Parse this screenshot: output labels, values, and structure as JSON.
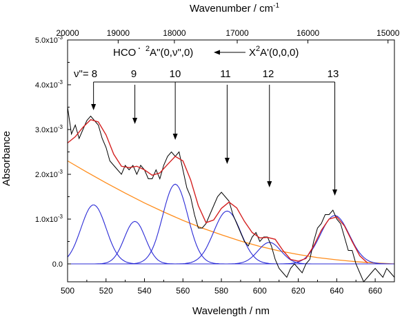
{
  "chart_data": {
    "type": "line",
    "xlabel": "Wavelength / nm",
    "x2label_main": "Wavenumber / cm",
    "x2label_exp": "-1",
    "ylabel": "Absorbance",
    "xlim": [
      500,
      670
    ],
    "ylim": [
      -0.0004,
      0.005
    ],
    "x_ticks": [
      500,
      520,
      540,
      560,
      580,
      600,
      620,
      640,
      660
    ],
    "x_tick_labels": [
      "500",
      "520",
      "540",
      "560",
      "580",
      "600",
      "620",
      "640",
      "660"
    ],
    "x2_ticks_cm": [
      20000,
      19000,
      18000,
      17000,
      16000,
      15000
    ],
    "x2_tick_labels": [
      "20000",
      "19000",
      "18000",
      "17000",
      "16000",
      "15000"
    ],
    "y_ticks": [
      0,
      0.001,
      0.002,
      0.003,
      0.004,
      0.005
    ],
    "y_tick_labels": [
      {
        "mant": "0.0",
        "exp": ""
      },
      {
        "mant": "1.0x10",
        "exp": "-3"
      },
      {
        "mant": "2.0x10",
        "exp": "-3"
      },
      {
        "mant": "3.0x10",
        "exp": "-3"
      },
      {
        "mant": "4.0x10",
        "exp": "-3"
      },
      {
        "mant": "5.0x10",
        "exp": "-3"
      }
    ],
    "annotation": {
      "upper_prefix": "HCO",
      "upper_dot": "·",
      "upper_sup": "2",
      "upper_state": "A\"(0,ν\",0)",
      "lower_state_X": "X",
      "lower_sup": "2",
      "lower_state": "A'(0,0,0)",
      "v_label": "ν\"= 8",
      "band_labels": [
        "9",
        "10",
        "11",
        "12",
        "13"
      ]
    },
    "band_positions_nm": [
      513.5,
      535,
      556,
      583,
      605,
      639
    ],
    "series": [
      {
        "role": "measured spectrum",
        "color": "#000000",
        "x": [
          500,
          502,
          504,
          506,
          508,
          510,
          512,
          514,
          516,
          518,
          520,
          522,
          524,
          526,
          528,
          530,
          532,
          534,
          536,
          538,
          540,
          542,
          544,
          546,
          548,
          550,
          552,
          554,
          556,
          558,
          560,
          562,
          564,
          566,
          568,
          570,
          572,
          574,
          576,
          578,
          580,
          582,
          584,
          586,
          588,
          590,
          592,
          594,
          596,
          598,
          600,
          602,
          604,
          606,
          608,
          610,
          612,
          614,
          616,
          618,
          620,
          622,
          624,
          626,
          628,
          630,
          632,
          634,
          636,
          638,
          640,
          642,
          644,
          646,
          648,
          650,
          652,
          654,
          656,
          658,
          660,
          662,
          664,
          666,
          668,
          670
        ],
        "y": [
          0.0035,
          0.0029,
          0.0031,
          0.0028,
          0.003,
          0.0032,
          0.0033,
          0.0032,
          0.0031,
          0.0028,
          0.0026,
          0.0023,
          0.0022,
          0.0021,
          0.002,
          0.0022,
          0.0021,
          0.0022,
          0.002,
          0.0022,
          0.0021,
          0.0019,
          0.0019,
          0.0021,
          0.0019,
          0.0022,
          0.0024,
          0.0025,
          0.0024,
          0.0025,
          0.0021,
          0.0017,
          0.0015,
          0.0011,
          0.0008,
          0.0008,
          0.0009,
          0.0011,
          0.0013,
          0.0015,
          0.0016,
          0.0015,
          0.0014,
          0.0011,
          0.0009,
          0.0007,
          0.0005,
          0.0004,
          0.0006,
          0.0007,
          0.0005,
          0.0006,
          0.0006,
          0.0004,
          0.0001,
          -0.0001,
          -0.0002,
          -0.0003,
          -0.0001,
          0.0,
          -0.0001,
          -0.0002,
          0.0,
          0.0001,
          0.0005,
          0.0008,
          0.0009,
          0.0011,
          0.0011,
          0.0012,
          0.001,
          0.0009,
          0.0006,
          0.0003,
          0.0003,
          0.0,
          -0.0002,
          -0.0004,
          -0.0003,
          -0.0002,
          -0.0001,
          -0.0002,
          -0.0003,
          -0.0001,
          -0.0002,
          -0.0003
        ]
      },
      {
        "role": "fit sum",
        "color": "#d42020",
        "x": [
          500,
          504,
          508,
          512,
          516,
          520,
          524,
          528,
          532,
          536,
          540,
          544,
          548,
          552,
          556,
          560,
          564,
          568,
          572,
          576,
          580,
          584,
          588,
          592,
          596,
          600,
          604,
          608,
          612,
          616,
          620,
          624,
          628,
          632,
          636,
          640,
          644,
          648,
          652,
          656
        ],
        "y": [
          0.0027,
          0.00284,
          0.00305,
          0.00322,
          0.00317,
          0.00288,
          0.00245,
          0.00218,
          0.00215,
          0.00218,
          0.0021,
          0.00198,
          0.00203,
          0.00222,
          0.0024,
          0.0023,
          0.00188,
          0.0013,
          0.00092,
          0.00098,
          0.00124,
          0.00138,
          0.00125,
          0.00095,
          0.0007,
          0.00058,
          0.00059,
          0.00055,
          0.0003,
          0.0001,
          6e-05,
          0.00012,
          0.0004,
          0.00075,
          0.001,
          0.00105,
          0.00085,
          0.0005,
          0.00018,
          2e-05
        ]
      },
      {
        "role": "baseline",
        "color": "#ff8c1a",
        "x": [
          500,
          510,
          520,
          530,
          540,
          550,
          560,
          570,
          580,
          590,
          600,
          610,
          620,
          630,
          640,
          650,
          660,
          670
        ],
        "y": [
          0.0023,
          0.00205,
          0.00181,
          0.00158,
          0.00136,
          0.00116,
          0.00097,
          0.0008,
          0.00065,
          0.00051,
          0.00039,
          0.00029,
          0.00021,
          0.00014,
          9e-05,
          5e-05,
          2e-05,
          0.0
        ]
      }
    ],
    "gaussians": [
      {
        "center": 513.5,
        "amplitude": 0.00132,
        "sigma": 6.5
      },
      {
        "center": 535,
        "amplitude": 0.00095,
        "sigma": 5.5
      },
      {
        "center": 556,
        "amplitude": 0.00178,
        "sigma": 6.5
      },
      {
        "center": 583,
        "amplitude": 0.00118,
        "sigma": 7.0
      },
      {
        "center": 605,
        "amplitude": 0.00048,
        "sigma": 6.0
      },
      {
        "center": 639,
        "amplitude": 0.00108,
        "sigma": 7.5
      }
    ],
    "gaussian_color": "#2a2ad6"
  }
}
